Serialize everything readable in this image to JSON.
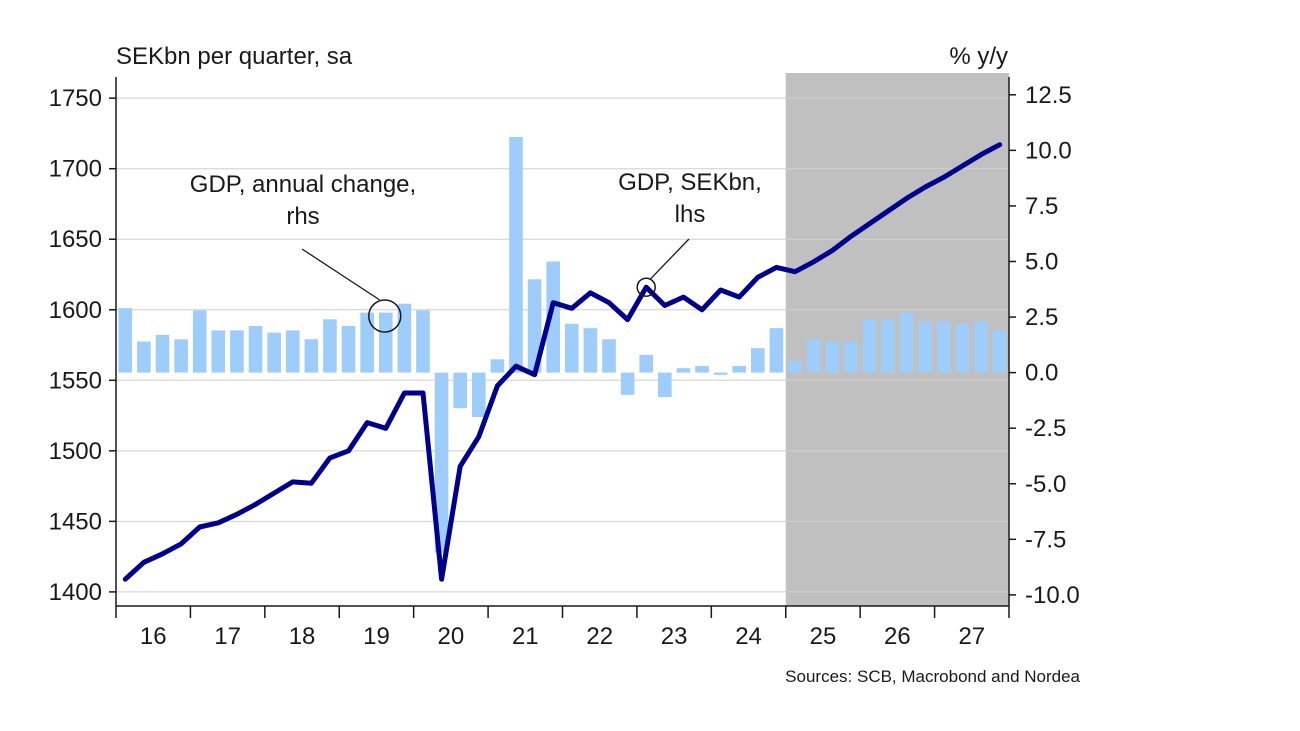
{
  "chart_data": {
    "type": "bar+line",
    "left_axis": {
      "title": "SEKbn per quarter, sa",
      "ylim": [
        1390,
        1765
      ],
      "ticks": [
        1400,
        1450,
        1500,
        1550,
        1600,
        1650,
        1700,
        1750
      ],
      "tick_labels": [
        "1400",
        "1450",
        "1500",
        "1550",
        "1600",
        "1650",
        "1700",
        "1750"
      ]
    },
    "right_axis": {
      "title": "% y/y",
      "ylim": [
        -10.5,
        13.3
      ],
      "ticks": [
        -10,
        -7.5,
        -5,
        -2.5,
        0,
        2.5,
        5,
        7.5,
        10,
        12.5
      ],
      "tick_labels": [
        "-10.0",
        "-7.5",
        "-5.0",
        "-2.5",
        "0.0",
        "2.5",
        "5.0",
        "7.5",
        "10.0",
        "12.5"
      ]
    },
    "x_axis": {
      "start_year": 2016,
      "end_year": 2027,
      "year_labels": [
        "16",
        "17",
        "18",
        "19",
        "20",
        "21",
        "22",
        "23",
        "24",
        "25",
        "26",
        "27"
      ]
    },
    "forecast_shading": {
      "from": "2025Q1",
      "to": "2027Q4",
      "color": "#c0c0c0"
    },
    "grid": true,
    "series": [
      {
        "name": "GDP, annual change, rhs",
        "type": "bar",
        "axis": "right",
        "color": "#9fcdfb",
        "values": [
          2.9,
          1.4,
          1.7,
          1.5,
          2.8,
          1.9,
          1.9,
          2.1,
          1.8,
          1.9,
          1.5,
          2.4,
          2.1,
          2.7,
          2.7,
          3.1,
          2.8,
          -8.1,
          -1.6,
          -2.0,
          0.6,
          10.6,
          4.2,
          5.0,
          2.2,
          2.0,
          1.5,
          -1.0,
          0.8,
          -1.1,
          0.2,
          0.3,
          -0.1,
          0.3,
          1.1,
          2.0,
          0.5,
          1.5,
          1.4,
          1.4,
          2.4,
          2.4,
          2.7,
          2.3,
          2.3,
          2.2,
          2.3,
          1.9
        ]
      },
      {
        "name": "GDP, SEKbn, lhs",
        "type": "line",
        "axis": "left",
        "color": "#00008f",
        "values": [
          1409,
          1421,
          1427,
          1434,
          1446,
          1449,
          1455,
          1462,
          1470,
          1478,
          1477,
          1495,
          1500,
          1520,
          1516,
          1541,
          1541,
          1409,
          1489,
          1510,
          1546,
          1560,
          1554,
          1605,
          1601,
          1612,
          1605,
          1593,
          1616,
          1603,
          1609,
          1600,
          1614,
          1609,
          1623,
          1630,
          1627,
          1634,
          1642,
          1652,
          1661,
          1670,
          1679,
          1687,
          1694,
          1702,
          1710,
          1717
        ]
      }
    ],
    "annotations": [
      {
        "text_lines": [
          "GDP, annual change,",
          "rhs"
        ],
        "target": "bars"
      },
      {
        "text_lines": [
          "GDP, SEKbn,",
          "lhs"
        ],
        "target": "line"
      }
    ],
    "source": "Sources: SCB, Macrobond and Nordea"
  }
}
